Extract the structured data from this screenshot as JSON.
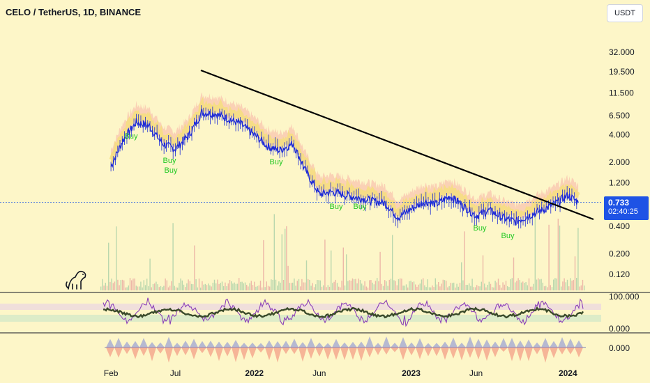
{
  "header": {
    "title": "CELO / TetherUS, 1D, BINANCE",
    "currency_button": "USDT"
  },
  "price_badge": {
    "price": "0.733",
    "countdown": "02:40:25"
  },
  "colors": {
    "background": "#fdf6c8",
    "price_line": "#1e2bd6",
    "trendline": "#000000",
    "buy_label": "#22c822",
    "cloud": "#f7b3a6",
    "ribbon": "#f5e07a",
    "oscillator_purple": "#8a3fb8",
    "oscillator_dark": "#3a4a2a",
    "wave_blue": "#7b86d8",
    "wave_red": "#f08070",
    "price_badge": "#1e53e5"
  },
  "chart_data": [
    {
      "type": "line",
      "title": "CELO / TetherUS, 1D, BINANCE",
      "yscale": "log",
      "y_ticks": [
        "32.000",
        "19.500",
        "11.500",
        "6.500",
        "4.000",
        "2.000",
        "1.200",
        "0.733",
        "0.400",
        "0.200",
        "0.120"
      ],
      "x_ticks": [
        "Feb",
        "Jul",
        "2022",
        "Jun",
        "2023",
        "Jun",
        "2024"
      ],
      "x": [
        "2021-02-01",
        "2021-03-01",
        "2021-04-01",
        "2021-05-01",
        "2021-06-01",
        "2021-07-01",
        "2021-08-01",
        "2021-09-01",
        "2021-10-01",
        "2021-11-01",
        "2021-12-01",
        "2022-01-01",
        "2022-02-01",
        "2022-03-01",
        "2022-04-01",
        "2022-05-01",
        "2022-06-01",
        "2022-07-01",
        "2022-08-01",
        "2022-09-01",
        "2022-10-01",
        "2022-11-01",
        "2022-12-01",
        "2023-01-01",
        "2023-02-01",
        "2023-03-01",
        "2023-04-01",
        "2023-05-01",
        "2023-06-01",
        "2023-07-01",
        "2023-08-01",
        "2023-09-01",
        "2023-10-01",
        "2023-11-01",
        "2023-12-01",
        "2024-01-01",
        "2024-01-25"
      ],
      "series": [
        {
          "values": [
            1.8,
            3.5,
            5.5,
            5.0,
            3.2,
            2.8,
            3.9,
            7.0,
            6.8,
            6.0,
            5.2,
            4.0,
            3.0,
            2.7,
            3.2,
            1.6,
            0.9,
            0.95,
            0.88,
            0.82,
            0.76,
            0.72,
            0.5,
            0.62,
            0.75,
            0.7,
            0.85,
            0.68,
            0.52,
            0.6,
            0.5,
            0.45,
            0.52,
            0.6,
            0.7,
            0.88,
            0.733
          ]
        }
      ],
      "annotations": [
        "Buy",
        "Buy",
        "Buy",
        "Buy",
        "Buy",
        "Buy",
        "Buy",
        "Buy"
      ]
    },
    {
      "type": "line",
      "y_ticks": [
        "100.000",
        "0.000"
      ]
    },
    {
      "type": "area",
      "y_ticks": [
        "0.000"
      ]
    }
  ]
}
